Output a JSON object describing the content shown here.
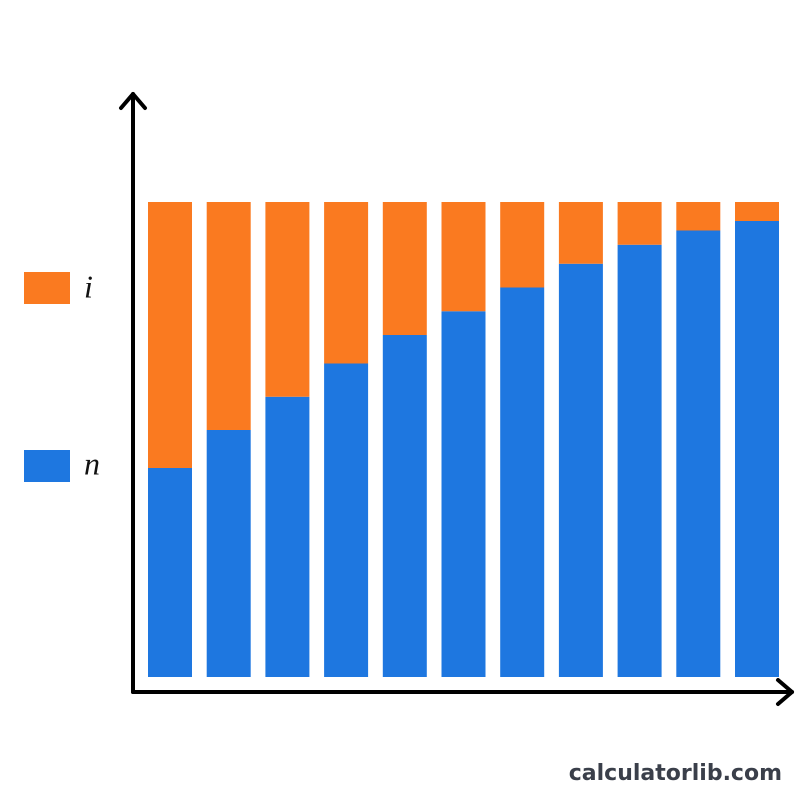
{
  "chart_data": {
    "type": "stacked-bar",
    "categories": [
      null,
      null,
      null,
      null,
      null,
      null,
      null,
      null,
      null,
      null,
      null
    ],
    "series": [
      {
        "name": "n",
        "color": "#1e77e0",
        "values": [
          44,
          52,
          59,
          66,
          72,
          77,
          82,
          87,
          91,
          94,
          96
        ]
      },
      {
        "name": "i",
        "color": "#fa7a20",
        "values": [
          56,
          48,
          41,
          34,
          28,
          23,
          18,
          13,
          9,
          6,
          4
        ]
      }
    ],
    "ylim": [
      0,
      100
    ]
  },
  "watermark": "calculatorlib.com"
}
